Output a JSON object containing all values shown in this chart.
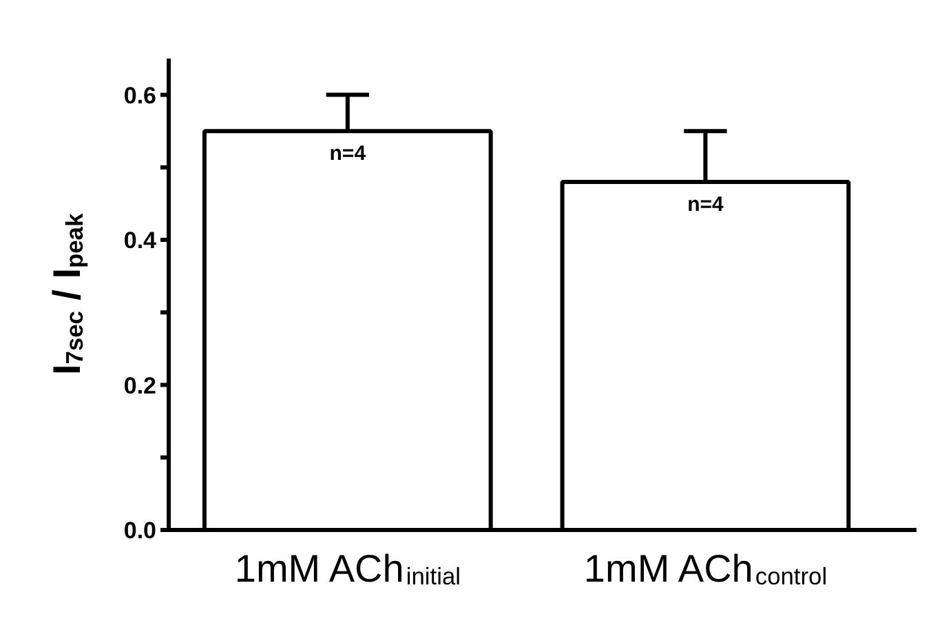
{
  "chart_data": {
    "type": "bar",
    "ylabel": "I$_{7sec}$ / I$_{peak}$",
    "categories": [
      "1mM ACh$_{initial}$",
      "1mM ACh$_{control}$"
    ],
    "values": [
      0.55,
      0.48
    ],
    "color": "#ffffff",
    "errors": [
      [
        0.55,
        0.6
      ],
      [
        0.48,
        0.55
      ]
    ],
    "ylim": [
      0,
      0.65
    ],
    "yticks": [
      {
        "value": 0,
        "label": "0.0"
      },
      {
        "value": 0.1,
        "label": null
      },
      {
        "value": 0.2,
        "label": "0.2"
      },
      {
        "value": 0.3,
        "label": null
      },
      {
        "value": 0.4,
        "label": "0.4"
      },
      {
        "value": 0.5,
        "label": null
      },
      {
        "value": 0.6,
        "label": "0.6"
      }
    ],
    "annotations": [
      {
        "text": "n=4",
        "x": "1mM ACh$_{initial}$",
        "y": 0.55
      },
      {
        "text": "n=4",
        "x": "1mM ACh$_{control}$",
        "y": 0.48
      }
    ],
    "grid": false
  }
}
